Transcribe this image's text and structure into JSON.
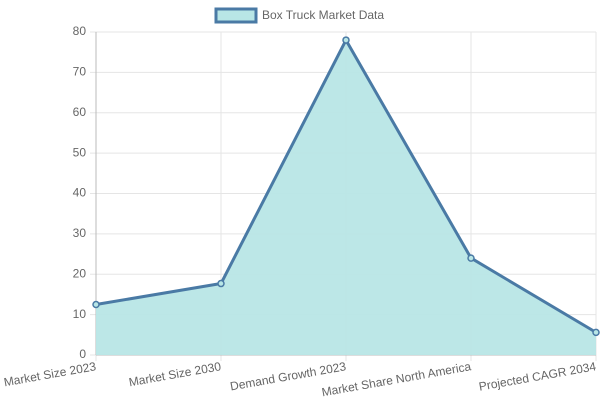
{
  "chart_data": {
    "type": "area",
    "categories": [
      "Market Size 2023",
      "Market Size 2030",
      "Demand Growth 2023",
      "Market Share North America",
      "Projected CAGR 2034"
    ],
    "series": [
      {
        "name": "Box Truck Market Data",
        "color": "#4a7aa5",
        "fill_color": "#b8e6e6",
        "values": [
          12.5,
          17.7,
          78,
          24,
          5.6
        ]
      }
    ],
    "ylim": [
      0,
      80
    ],
    "yticks": [
      0,
      10,
      20,
      30,
      40,
      50,
      60,
      70,
      80
    ],
    "grid": true,
    "legend": "top"
  }
}
